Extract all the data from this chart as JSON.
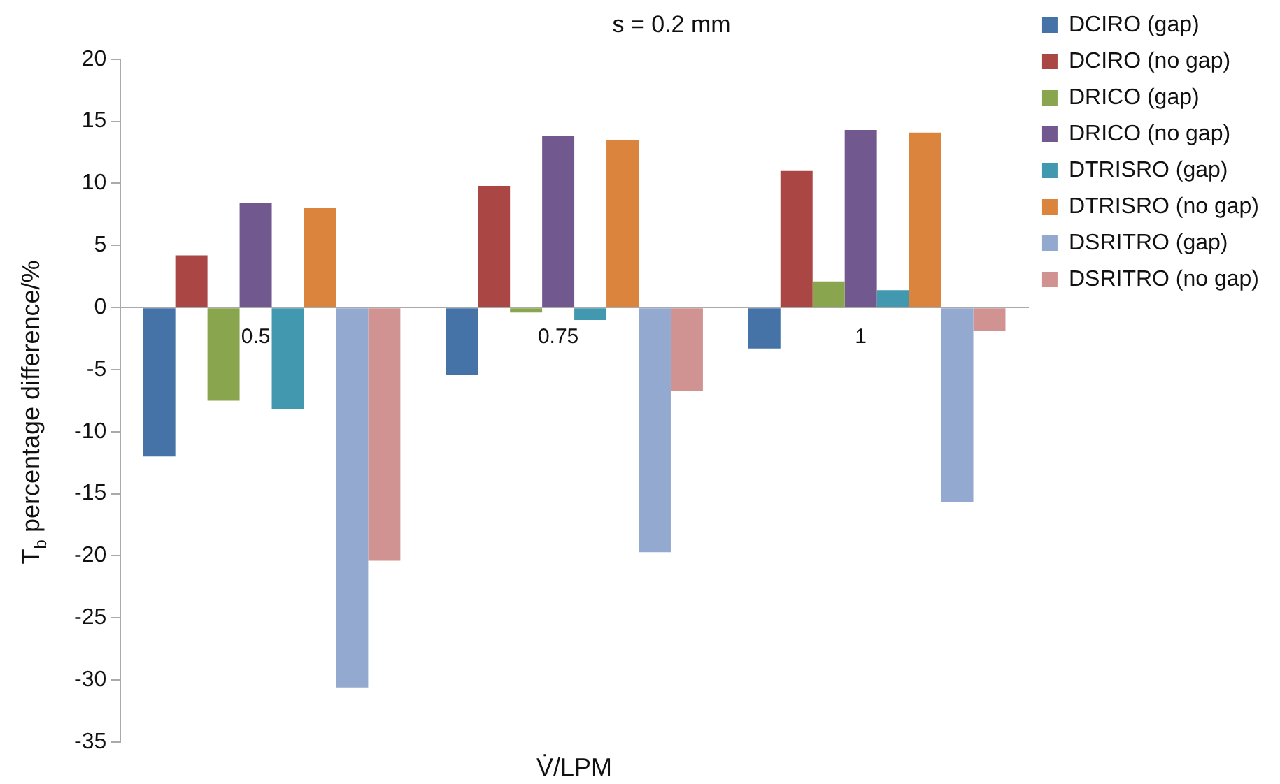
{
  "chart_data": {
    "type": "bar",
    "title": "s = 0.2 mm",
    "xlabel": "V̇/LPM",
    "ylabel": "T$_{b}$ percentage difference/%",
    "categories": [
      "0.5",
      "0.75",
      "1"
    ],
    "series": [
      {
        "name": "DCIRO (gap)",
        "color": "#4572a7",
        "values": [
          -12.0,
          -5.4,
          -3.3
        ]
      },
      {
        "name": "DCIRO (no gap)",
        "color": "#aa4643",
        "values": [
          4.2,
          9.8,
          11.0
        ]
      },
      {
        "name": "DRICO (gap)",
        "color": "#89a54e",
        "values": [
          -7.5,
          -0.4,
          2.1
        ]
      },
      {
        "name": "DRICO (no gap)",
        "color": "#71588f",
        "values": [
          8.4,
          13.8,
          14.3
        ]
      },
      {
        "name": "DTRISRO (gap)",
        "color": "#4198af",
        "values": [
          -8.2,
          -1.0,
          1.4
        ]
      },
      {
        "name": "DTRISRO (no gap)",
        "color": "#db843d",
        "values": [
          8.0,
          13.5,
          14.1
        ]
      },
      {
        "name": "DSRITRO (gap)",
        "color": "#93a9cf",
        "values": [
          -30.6,
          -19.7,
          -15.7
        ]
      },
      {
        "name": "DSRITRO (no gap)",
        "color": "#d19392",
        "values": [
          -20.4,
          -6.7,
          -1.9
        ]
      }
    ],
    "ylim": [
      -35,
      20
    ],
    "yticks": [
      -35,
      -30,
      -25,
      -20,
      -15,
      -10,
      -5,
      0,
      5,
      10,
      15,
      20
    ],
    "grid": false,
    "legend": "right"
  }
}
